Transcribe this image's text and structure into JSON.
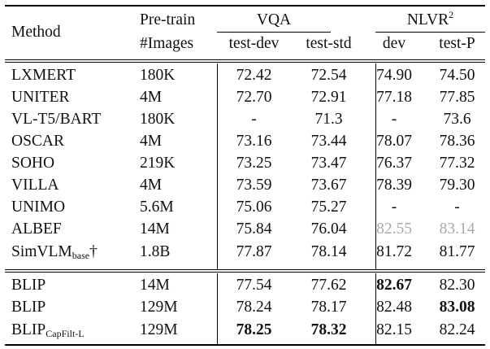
{
  "header": {
    "method": "Method",
    "pretrain_line1": "Pre-train",
    "pretrain_line2": "#Images",
    "vqa": "VQA",
    "nlvr_base": "NLVR",
    "nlvr_sup": "2",
    "test_dev": "test-dev",
    "test_std": "test-std",
    "dev": "dev",
    "test_p": "test-P"
  },
  "rows": [
    {
      "method": "LXMERT",
      "images": "180K",
      "test_dev": "72.42",
      "test_std": "72.54",
      "dev": "74.90",
      "test_p": "74.50"
    },
    {
      "method": "UNITER",
      "images": "4M",
      "test_dev": "72.70",
      "test_std": "72.91",
      "dev": "77.18",
      "test_p": "77.85"
    },
    {
      "method": "VL-T5/BART",
      "images": "180K",
      "test_dev": "-",
      "test_std": "71.3",
      "dev": "-",
      "test_p": "73.6"
    },
    {
      "method": "OSCAR",
      "images": "4M",
      "test_dev": "73.16",
      "test_std": "73.44",
      "dev": "78.07",
      "test_p": "78.36"
    },
    {
      "method": "SOHO",
      "images": "219K",
      "test_dev": "73.25",
      "test_std": "73.47",
      "dev": "76.37",
      "test_p": "77.32"
    },
    {
      "method": "VILLA",
      "images": "4M",
      "test_dev": "73.59",
      "test_std": "73.67",
      "dev": "78.39",
      "test_p": "79.30"
    },
    {
      "method": "UNIMO",
      "images": "5.6M",
      "test_dev": "75.06",
      "test_std": "75.27",
      "dev": "-",
      "test_p": "-"
    },
    {
      "method": "ALBEF",
      "images": "14M",
      "test_dev": "75.84",
      "test_std": "76.04",
      "dev": "82.55",
      "test_p": "83.14"
    },
    {
      "method": "SimVLM",
      "method_sub": "base",
      "method_suffix": "†",
      "images": "1.8B",
      "test_dev": "77.87",
      "test_std": "78.14",
      "dev": "81.72",
      "test_p": "81.77"
    },
    {
      "method": "BLIP",
      "images": "14M",
      "test_dev": "77.54",
      "test_std": "77.62",
      "dev": "82.67",
      "test_p": "82.30"
    },
    {
      "method": "BLIP",
      "images": "129M",
      "test_dev": "78.24",
      "test_std": "78.17",
      "dev": "82.48",
      "test_p": "83.08"
    },
    {
      "method": "BLIP",
      "method_sub": "CapFilt-L",
      "images": "129M",
      "test_dev": "78.25",
      "test_std": "78.32",
      "dev": "82.15",
      "test_p": "82.24"
    }
  ]
}
